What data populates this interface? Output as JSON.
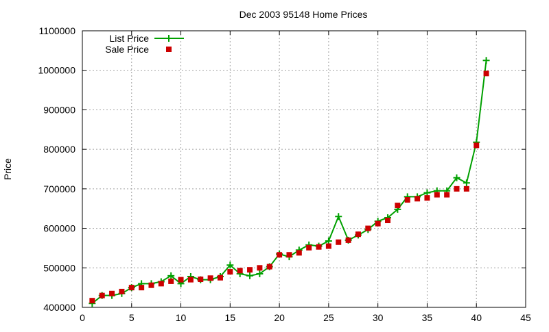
{
  "chart_data": {
    "type": "line",
    "title": "Dec 2003 95148 Home Prices",
    "xlabel": "",
    "ylabel": "Price",
    "xlim": [
      0,
      45
    ],
    "ylim": [
      400000,
      1100000
    ],
    "xticks": [
      0,
      5,
      10,
      15,
      20,
      25,
      30,
      35,
      40,
      45
    ],
    "yticks": [
      400000,
      500000,
      600000,
      700000,
      800000,
      900000,
      1000000,
      1100000
    ],
    "xtick_labels": [
      "0",
      "5",
      "10",
      "15",
      "20",
      "25",
      "30",
      "35",
      "40",
      "45"
    ],
    "ytick_labels": [
      "400000",
      "500000",
      "600000",
      "700000",
      "800000",
      "900000",
      "1000000",
      "1100000"
    ],
    "grid": true,
    "legend_position": "top-left",
    "colors": {
      "list": "#00a000",
      "sale": "#cc0000"
    },
    "series": [
      {
        "name": "List Price",
        "style": "line-plus",
        "x": [
          1,
          2,
          3,
          4,
          5,
          6,
          7,
          8,
          9,
          10,
          11,
          12,
          13,
          14,
          15,
          16,
          17,
          18,
          19,
          20,
          21,
          22,
          23,
          24,
          25,
          26,
          27,
          28,
          29,
          30,
          31,
          32,
          33,
          34,
          35,
          36,
          37,
          38,
          39,
          40,
          41
        ],
        "y": [
          410000,
          430000,
          430000,
          435000,
          450000,
          460000,
          460000,
          465000,
          480000,
          460000,
          478000,
          470000,
          470000,
          478000,
          507000,
          485000,
          480000,
          485000,
          503000,
          535000,
          528000,
          545000,
          558000,
          555000,
          568000,
          630000,
          570000,
          583000,
          597000,
          618000,
          627000,
          648000,
          680000,
          680000,
          690000,
          695000,
          695000,
          728000,
          715000,
          818000,
          1025000
        ]
      },
      {
        "name": "Sale Price",
        "style": "square-points",
        "x": [
          1,
          2,
          3,
          4,
          5,
          6,
          7,
          8,
          9,
          10,
          11,
          12,
          13,
          14,
          15,
          16,
          17,
          18,
          19,
          20,
          21,
          22,
          23,
          24,
          25,
          26,
          27,
          28,
          29,
          30,
          31,
          32,
          33,
          34,
          35,
          36,
          37,
          38,
          39,
          40,
          41
        ],
        "y": [
          417000,
          430000,
          435000,
          440000,
          450000,
          450000,
          456000,
          460000,
          466000,
          470000,
          470000,
          471000,
          474000,
          475000,
          490000,
          493000,
          495000,
          500000,
          503000,
          533000,
          533000,
          538000,
          551000,
          553000,
          555000,
          565000,
          570000,
          585000,
          600000,
          612000,
          620000,
          658000,
          672000,
          675000,
          677000,
          685000,
          685000,
          700000,
          700000,
          810000,
          992000
        ]
      }
    ]
  }
}
